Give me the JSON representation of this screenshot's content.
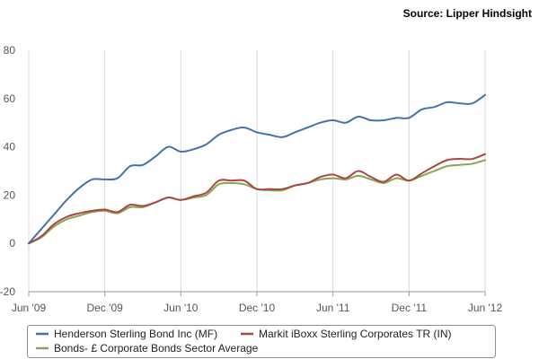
{
  "source_note": "Source: Lipper Hindsight",
  "chart_data": {
    "type": "line",
    "title": "",
    "xlabel": "",
    "ylabel": "",
    "x_ticks": [
      "Jun '09",
      "Dec '09",
      "Jun '10",
      "Dec '10",
      "Jun '11",
      "Dec '11",
      "Jun '12"
    ],
    "y_ticks": [
      -20,
      0,
      20,
      40,
      60,
      80
    ],
    "ylim": [
      -20,
      80
    ],
    "xlim": [
      0,
      36
    ],
    "grid": "vertical",
    "legend_position": "bottom",
    "series": [
      {
        "name": "Henderson Sterling Bond Inc (MF)",
        "color": "#4572a7",
        "points": [
          [
            0,
            0
          ],
          [
            1,
            6
          ],
          [
            2,
            12
          ],
          [
            3,
            18
          ],
          [
            4,
            23
          ],
          [
            5,
            26.5
          ],
          [
            6,
            26.5
          ],
          [
            7,
            27
          ],
          [
            8,
            32
          ],
          [
            9,
            32.5
          ],
          [
            10,
            36
          ],
          [
            11,
            40
          ],
          [
            12,
            38
          ],
          [
            13,
            39
          ],
          [
            14,
            41
          ],
          [
            15,
            45
          ],
          [
            16,
            47
          ],
          [
            17,
            48
          ],
          [
            18,
            46
          ],
          [
            19,
            45
          ],
          [
            20,
            44
          ],
          [
            21,
            46
          ],
          [
            22,
            48
          ],
          [
            23,
            50
          ],
          [
            24,
            51
          ],
          [
            25,
            50
          ],
          [
            26,
            52.5
          ],
          [
            27,
            51
          ],
          [
            28,
            51
          ],
          [
            29,
            52
          ],
          [
            30,
            52
          ],
          [
            31,
            55.5
          ],
          [
            32,
            56.5
          ],
          [
            33,
            58.5
          ],
          [
            34,
            58
          ],
          [
            35,
            58
          ],
          [
            36,
            61.5
          ]
        ]
      },
      {
        "name": "Markit iBoxx Sterling Corporates TR (IN)",
        "color": "#aa4643",
        "points": [
          [
            0,
            0
          ],
          [
            1,
            3
          ],
          [
            2,
            8
          ],
          [
            3,
            11
          ],
          [
            4,
            12.5
          ],
          [
            5,
            13.5
          ],
          [
            6,
            14
          ],
          [
            7,
            13
          ],
          [
            8,
            16
          ],
          [
            9,
            15.5
          ],
          [
            10,
            17
          ],
          [
            11,
            19
          ],
          [
            12,
            18
          ],
          [
            13,
            19.5
          ],
          [
            14,
            21
          ],
          [
            15,
            26
          ],
          [
            16,
            26
          ],
          [
            17,
            26
          ],
          [
            18,
            22.5
          ],
          [
            19,
            22.5
          ],
          [
            20,
            22.5
          ],
          [
            21,
            24
          ],
          [
            22,
            25
          ],
          [
            23,
            27.5
          ],
          [
            24,
            28.5
          ],
          [
            25,
            27
          ],
          [
            26,
            30
          ],
          [
            27,
            27.5
          ],
          [
            28,
            25.5
          ],
          [
            29,
            28.5
          ],
          [
            30,
            26
          ],
          [
            31,
            29
          ],
          [
            32,
            32
          ],
          [
            33,
            34.5
          ],
          [
            34,
            35
          ],
          [
            35,
            35
          ],
          [
            36,
            37
          ]
        ]
      },
      {
        "name": "Bonds- £ Corporate Bonds Sector Average",
        "color": "#89a54e",
        "points": [
          [
            0,
            0
          ],
          [
            1,
            2.5
          ],
          [
            2,
            7
          ],
          [
            3,
            10
          ],
          [
            4,
            11.5
          ],
          [
            5,
            13
          ],
          [
            6,
            13.5
          ],
          [
            7,
            12.5
          ],
          [
            8,
            15
          ],
          [
            9,
            15
          ],
          [
            10,
            17
          ],
          [
            11,
            19
          ],
          [
            12,
            18
          ],
          [
            13,
            19
          ],
          [
            14,
            20
          ],
          [
            15,
            24.5
          ],
          [
            16,
            25
          ],
          [
            17,
            24.5
          ],
          [
            18,
            22.5
          ],
          [
            19,
            22
          ],
          [
            20,
            22
          ],
          [
            21,
            24
          ],
          [
            22,
            25
          ],
          [
            23,
            26.5
          ],
          [
            24,
            27
          ],
          [
            25,
            26.5
          ],
          [
            26,
            28
          ],
          [
            27,
            26.5
          ],
          [
            28,
            25
          ],
          [
            29,
            27
          ],
          [
            30,
            26
          ],
          [
            31,
            28
          ],
          [
            32,
            30
          ],
          [
            33,
            32
          ],
          [
            34,
            32.5
          ],
          [
            35,
            33
          ],
          [
            36,
            34.5
          ]
        ]
      }
    ]
  }
}
